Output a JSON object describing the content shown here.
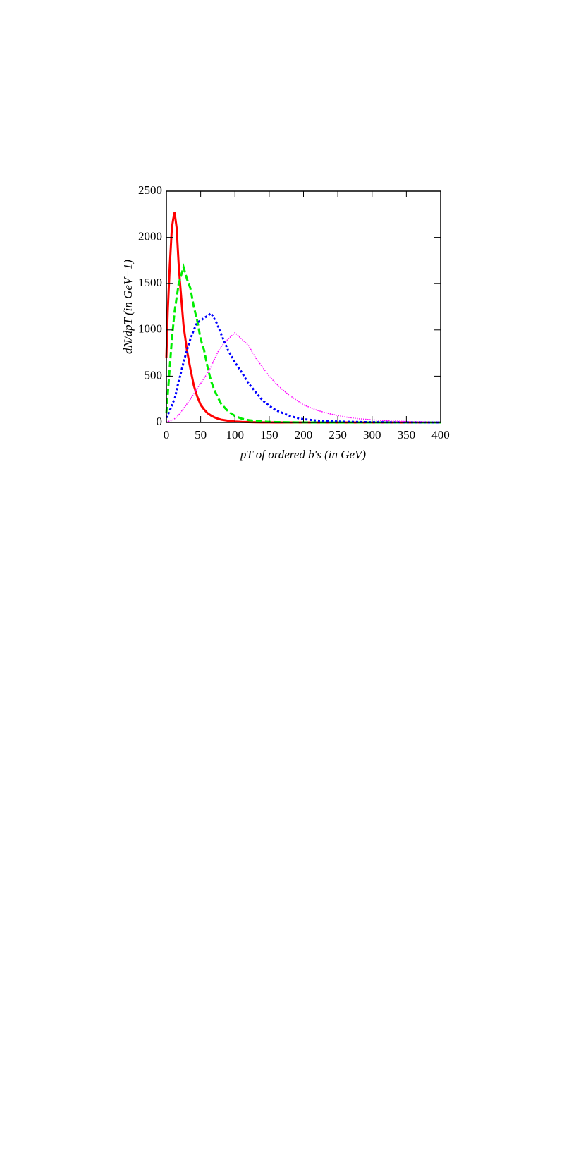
{
  "chart_data": {
    "type": "line",
    "xlabel": "pT of ordered b's (in GeV)",
    "ylabel": "dN/dpT (in GeV−1)",
    "xlim": [
      0,
      400
    ],
    "xticks": [
      0,
      50,
      100,
      150,
      200,
      250,
      300,
      350,
      400
    ],
    "ylim": [
      0,
      2500
    ],
    "yticks": [
      0,
      500,
      1000,
      1500,
      2000,
      2500
    ],
    "x": [
      0,
      2,
      5,
      8,
      10,
      12,
      15,
      18,
      20,
      25,
      30,
      35,
      40,
      45,
      50,
      55,
      60,
      65,
      70,
      75,
      80,
      90,
      100,
      110,
      120,
      130,
      140,
      150,
      160,
      170,
      180,
      190,
      200,
      220,
      240,
      260,
      280,
      300,
      330,
      360,
      400
    ],
    "series": [
      {
        "color": "#ff0000",
        "dash": "solid",
        "width": 3,
        "values": [
          700,
          1200,
          1700,
          2100,
          2200,
          2270,
          2100,
          1700,
          1500,
          1050,
          780,
          580,
          400,
          280,
          190,
          140,
          100,
          75,
          55,
          40,
          30,
          18,
          10,
          6,
          4,
          2,
          1,
          1,
          0,
          0,
          0,
          0,
          0,
          0,
          0,
          0,
          0,
          0,
          0,
          0,
          0
        ]
      },
      {
        "color": "#00ee00",
        "dash": "dashed",
        "width": 3,
        "values": [
          100,
          300,
          600,
          900,
          1050,
          1200,
          1350,
          1500,
          1550,
          1680,
          1550,
          1450,
          1250,
          1100,
          900,
          780,
          600,
          450,
          350,
          270,
          200,
          120,
          70,
          40,
          25,
          15,
          10,
          6,
          4,
          3,
          2,
          1,
          1,
          0,
          0,
          0,
          0,
          0,
          0,
          0,
          0
        ]
      },
      {
        "color": "#0000ff",
        "dash": "dotted",
        "width": 3,
        "values": [
          50,
          80,
          130,
          180,
          220,
          250,
          350,
          450,
          500,
          650,
          780,
          900,
          1000,
          1080,
          1100,
          1130,
          1150,
          1180,
          1120,
          1050,
          950,
          780,
          650,
          540,
          420,
          330,
          240,
          180,
          130,
          100,
          70,
          50,
          35,
          20,
          12,
          8,
          5,
          3,
          2,
          1,
          0
        ]
      },
      {
        "color": "#ff00ff",
        "dash": "fine-dotted",
        "width": 1.5,
        "values": [
          5,
          10,
          15,
          20,
          30,
          40,
          60,
          80,
          100,
          150,
          200,
          250,
          310,
          370,
          420,
          480,
          530,
          600,
          680,
          760,
          820,
          900,
          970,
          900,
          830,
          700,
          600,
          500,
          420,
          350,
          290,
          240,
          190,
          130,
          90,
          60,
          40,
          28,
          15,
          8,
          3
        ]
      }
    ]
  }
}
